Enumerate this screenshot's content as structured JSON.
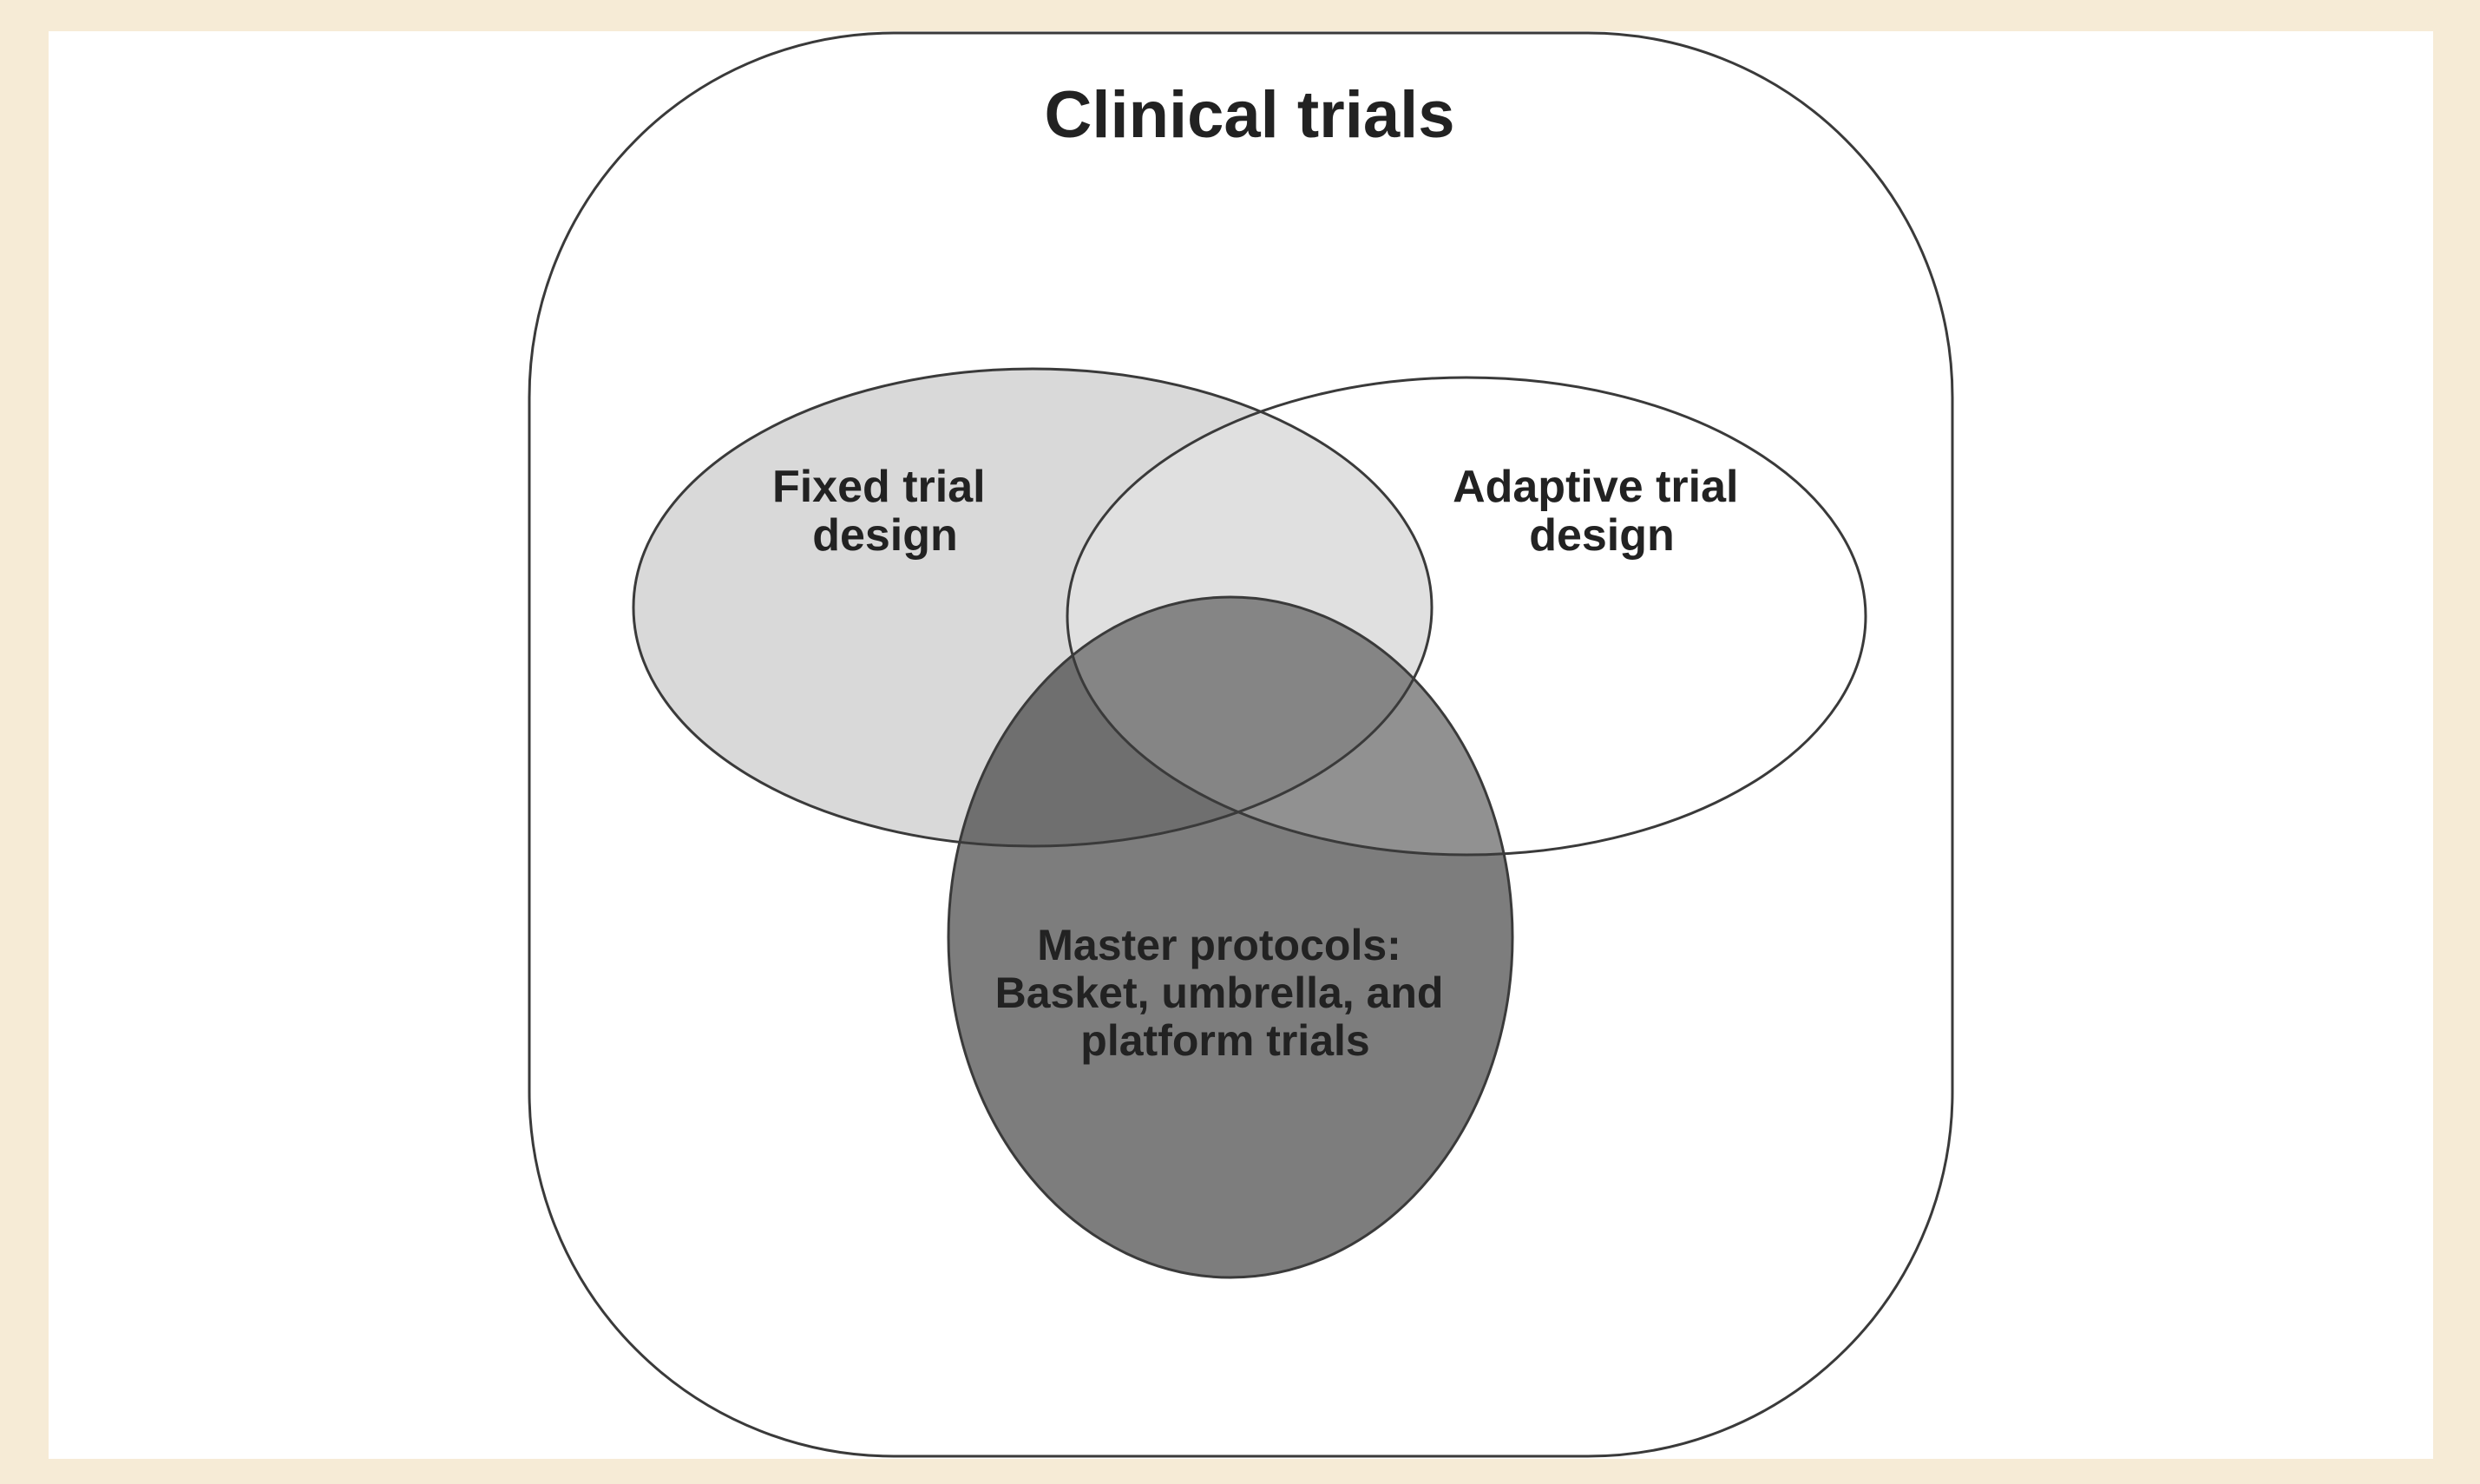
{
  "title": "Clinical trials",
  "sets": {
    "fixed": {
      "lines": [
        "Fixed trial",
        "design"
      ]
    },
    "adaptive": {
      "lines": [
        "Adaptive trial",
        "design"
      ]
    },
    "master": {
      "lines": [
        "Master protocols:",
        "Basket, umbrella, and",
        "platform trials"
      ]
    }
  },
  "colors": {
    "page_border": "#f6ebd6",
    "panel": "#ffffff",
    "outline": "#3a3a3a",
    "fixed_fill": "#d9d9d9",
    "adaptive_fill": "#ffffff",
    "overlap_fixed_adaptive": "#e0e0e0",
    "master_fill": "#7d7d7d",
    "master_overlap_fixed": "#6f6f6f",
    "master_overlap_adaptive": "#919191",
    "text": "#222222"
  }
}
